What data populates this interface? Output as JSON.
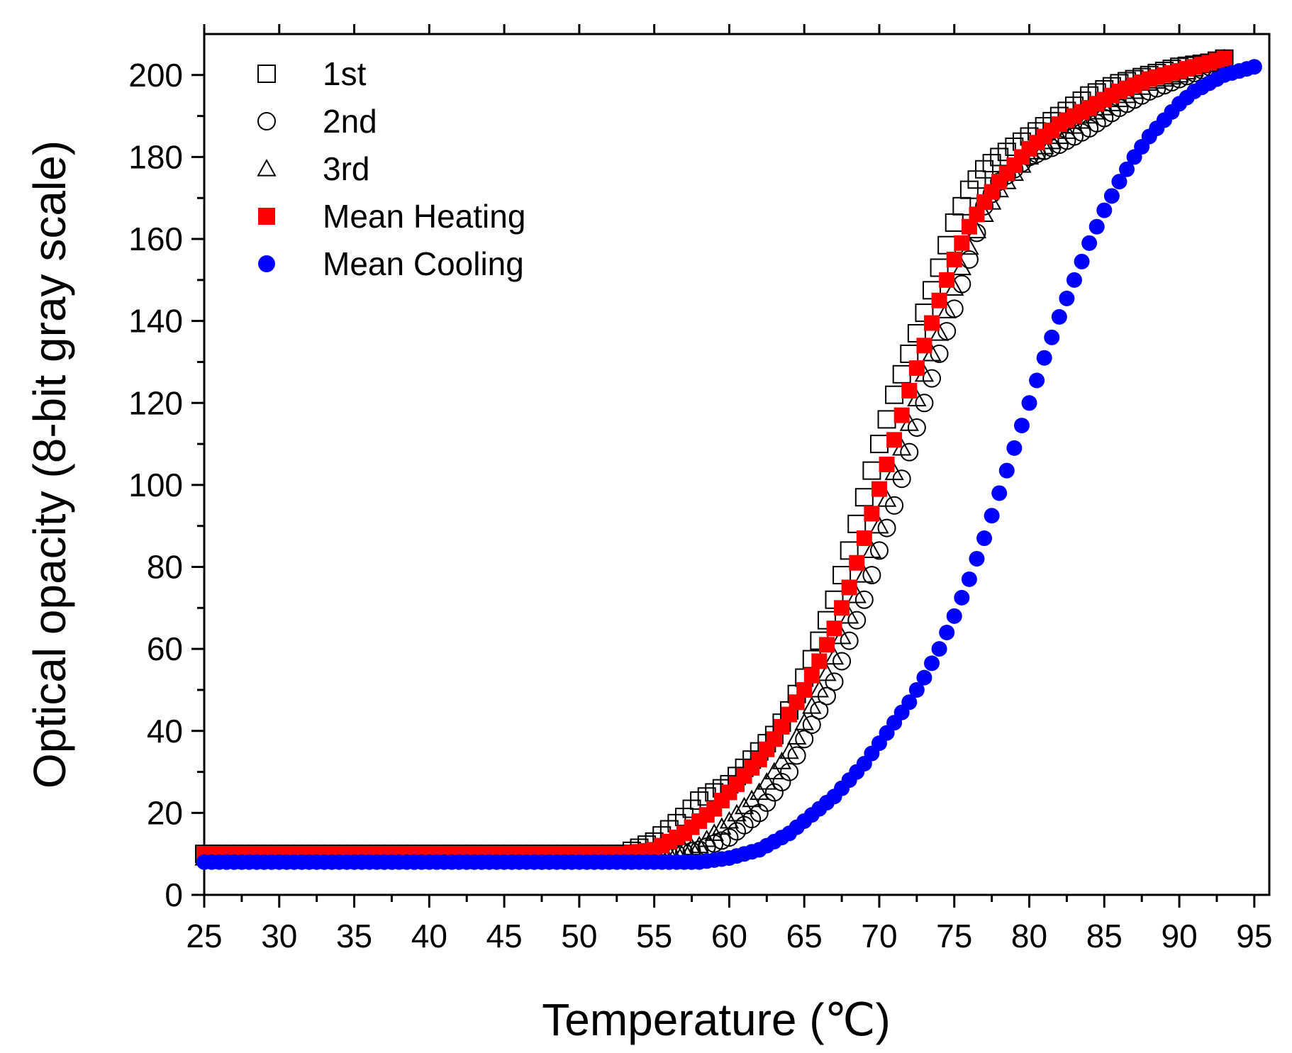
{
  "chart_data": {
    "type": "scatter",
    "title": "",
    "xlabel": "Temperature (℃)",
    "ylabel": "Optical opacity (8-bit gray scale)",
    "xlim": [
      25,
      96
    ],
    "ylim": [
      0,
      210
    ],
    "xticks": [
      25,
      30,
      35,
      40,
      45,
      50,
      55,
      60,
      65,
      70,
      75,
      80,
      85,
      90,
      95
    ],
    "yticks": [
      0,
      20,
      40,
      60,
      80,
      100,
      120,
      140,
      160,
      180,
      200
    ],
    "grid": false,
    "legend_position": "top-left",
    "series": [
      {
        "name": "1st",
        "marker": "square-open",
        "color": "#000000",
        "points": [
          [
            25,
            10
          ],
          [
            30,
            10
          ],
          [
            35,
            10
          ],
          [
            40,
            10
          ],
          [
            45,
            10
          ],
          [
            50,
            10
          ],
          [
            53,
            10
          ],
          [
            55,
            13
          ],
          [
            57,
            19
          ],
          [
            58,
            23
          ],
          [
            59,
            25
          ],
          [
            60,
            27
          ],
          [
            61,
            31
          ],
          [
            62,
            35
          ],
          [
            63,
            39
          ],
          [
            64,
            45
          ],
          [
            65,
            53
          ],
          [
            66,
            62
          ],
          [
            67,
            72
          ],
          [
            68,
            84
          ],
          [
            69,
            97
          ],
          [
            70,
            110
          ],
          [
            71,
            122
          ],
          [
            72,
            132
          ],
          [
            73,
            142
          ],
          [
            74,
            153
          ],
          [
            75,
            164
          ],
          [
            76,
            172
          ],
          [
            77,
            177
          ],
          [
            78,
            180
          ],
          [
            80,
            185
          ],
          [
            82,
            190
          ],
          [
            84,
            195
          ],
          [
            86,
            198
          ],
          [
            88,
            200
          ],
          [
            90,
            202
          ],
          [
            92,
            203
          ],
          [
            93,
            204
          ]
        ]
      },
      {
        "name": "2nd",
        "marker": "circle-open",
        "color": "#000000",
        "points": [
          [
            25,
            9
          ],
          [
            30,
            9
          ],
          [
            35,
            9
          ],
          [
            40,
            9
          ],
          [
            45,
            9
          ],
          [
            50,
            9
          ],
          [
            55,
            9
          ],
          [
            58,
            11
          ],
          [
            60,
            14
          ],
          [
            62,
            20
          ],
          [
            64,
            30
          ],
          [
            65,
            38
          ],
          [
            66,
            45
          ],
          [
            67,
            52
          ],
          [
            68,
            62
          ],
          [
            69,
            72
          ],
          [
            70,
            84
          ],
          [
            71,
            95
          ],
          [
            72,
            108
          ],
          [
            73,
            120
          ],
          [
            74,
            132
          ],
          [
            75,
            143
          ],
          [
            76,
            155
          ],
          [
            77,
            168
          ],
          [
            78,
            174
          ],
          [
            80,
            180
          ],
          [
            82,
            183
          ],
          [
            84,
            187
          ],
          [
            86,
            192
          ],
          [
            88,
            196
          ],
          [
            90,
            199
          ],
          [
            92,
            202
          ],
          [
            93,
            203
          ]
        ]
      },
      {
        "name": "3rd",
        "marker": "triangle-open",
        "color": "#000000",
        "points": [
          [
            25,
            9
          ],
          [
            30,
            9
          ],
          [
            35,
            9
          ],
          [
            40,
            9
          ],
          [
            45,
            9
          ],
          [
            50,
            9
          ],
          [
            55,
            9
          ],
          [
            58,
            12
          ],
          [
            60,
            18
          ],
          [
            62,
            25
          ],
          [
            63,
            30
          ],
          [
            64,
            35
          ],
          [
            65,
            42
          ],
          [
            66,
            50
          ],
          [
            67,
            58
          ],
          [
            68,
            68
          ],
          [
            69,
            78
          ],
          [
            70,
            90
          ],
          [
            71,
            103
          ],
          [
            72,
            115
          ],
          [
            73,
            127
          ],
          [
            74,
            137
          ],
          [
            75,
            148
          ],
          [
            76,
            158
          ],
          [
            77,
            166
          ],
          [
            78,
            172
          ],
          [
            80,
            180
          ],
          [
            82,
            185
          ],
          [
            84,
            190
          ],
          [
            86,
            194
          ],
          [
            88,
            198
          ],
          [
            90,
            200
          ],
          [
            92,
            203
          ],
          [
            93,
            204
          ]
        ]
      },
      {
        "name": "Mean Heating",
        "marker": "square-filled",
        "color": "#ff0000",
        "points": [
          [
            25,
            10
          ],
          [
            30,
            10
          ],
          [
            35,
            10
          ],
          [
            40,
            10
          ],
          [
            45,
            10
          ],
          [
            50,
            10
          ],
          [
            53,
            10
          ],
          [
            55,
            11
          ],
          [
            56,
            13
          ],
          [
            57,
            15
          ],
          [
            58,
            18
          ],
          [
            59,
            21
          ],
          [
            60,
            25
          ],
          [
            61,
            29
          ],
          [
            62,
            33
          ],
          [
            63,
            38
          ],
          [
            64,
            44
          ],
          [
            65,
            50
          ],
          [
            66,
            57
          ],
          [
            67,
            65
          ],
          [
            68,
            75
          ],
          [
            69,
            87
          ],
          [
            70,
            99
          ],
          [
            71,
            111
          ],
          [
            72,
            123
          ],
          [
            73,
            134
          ],
          [
            74,
            145
          ],
          [
            75,
            155
          ],
          [
            76,
            163
          ],
          [
            77,
            169
          ],
          [
            78,
            174
          ],
          [
            79,
            178
          ],
          [
            80,
            182
          ],
          [
            81,
            185
          ],
          [
            82,
            188
          ],
          [
            84,
            192
          ],
          [
            86,
            196
          ],
          [
            88,
            199
          ],
          [
            90,
            201
          ],
          [
            92,
            203
          ],
          [
            93,
            204
          ]
        ]
      },
      {
        "name": "Mean Cooling",
        "marker": "circle-filled",
        "color": "#0000ff",
        "points": [
          [
            25,
            8
          ],
          [
            30,
            8
          ],
          [
            35,
            8
          ],
          [
            40,
            8
          ],
          [
            45,
            8
          ],
          [
            50,
            8
          ],
          [
            55,
            8
          ],
          [
            58,
            8
          ],
          [
            60,
            9
          ],
          [
            61,
            10
          ],
          [
            62,
            11
          ],
          [
            63,
            13
          ],
          [
            64,
            15
          ],
          [
            65,
            18
          ],
          [
            66,
            21
          ],
          [
            67,
            24
          ],
          [
            68,
            28
          ],
          [
            69,
            32
          ],
          [
            70,
            37
          ],
          [
            71,
            42
          ],
          [
            72,
            47
          ],
          [
            73,
            53
          ],
          [
            74,
            60
          ],
          [
            75,
            68
          ],
          [
            76,
            77
          ],
          [
            77,
            87
          ],
          [
            78,
            98
          ],
          [
            79,
            109
          ],
          [
            80,
            120
          ],
          [
            81,
            131
          ],
          [
            82,
            141
          ],
          [
            83,
            150
          ],
          [
            84,
            159
          ],
          [
            85,
            167
          ],
          [
            86,
            174
          ],
          [
            87,
            180
          ],
          [
            88,
            185
          ],
          [
            89,
            189
          ],
          [
            90,
            193
          ],
          [
            91,
            196
          ],
          [
            92,
            198
          ],
          [
            93,
            200
          ],
          [
            94,
            201
          ],
          [
            95,
            202
          ]
        ]
      }
    ]
  }
}
